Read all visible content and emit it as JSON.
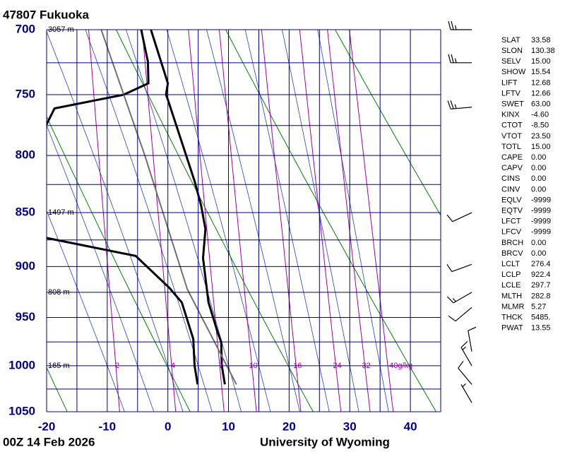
{
  "chart_data": {
    "type": "skewt",
    "title": "47807  Fukuoka",
    "date_label": "00Z 14 Feb 2026",
    "source": "University of Wyoming",
    "xlim": [
      -20,
      45
    ],
    "xticks": [
      -20,
      -10,
      0,
      10,
      20,
      30,
      40
    ],
    "xgrid": [
      -20,
      -15,
      -10,
      -5,
      0,
      5,
      10,
      15,
      20,
      25,
      30,
      35,
      40,
      45
    ],
    "ylim": [
      700,
      1050
    ],
    "ylog": true,
    "yticks": [
      700,
      750,
      800,
      850,
      900,
      950,
      1000,
      1050
    ],
    "ygrid": [
      700,
      725,
      750,
      775,
      800,
      825,
      850,
      875,
      900,
      925,
      950,
      975,
      1000,
      1025,
      1050
    ],
    "grid_color": "#000080",
    "dry_adiabats": [
      253,
      273,
      293,
      313,
      333
    ],
    "dry_color": "#008000",
    "moist_adiabats": [
      -10,
      -5,
      0,
      5,
      10,
      15,
      20,
      25,
      30,
      35
    ],
    "moist_color": "#2040c0",
    "mixing_ratio_level": 1000,
    "mixing_ratios": [
      2,
      4,
      7,
      10,
      16,
      24,
      32,
      {
        "value": 40,
        "label": "40g/kg"
      }
    ],
    "mixing_color": "#a000a0",
    "heights": [
      {
        "pressure": 700,
        "label": "3057 m"
      },
      {
        "pressure": 850,
        "label": "1497 m"
      },
      {
        "pressure": 925,
        "label": "808 m"
      },
      {
        "pressure": 1000,
        "label": "165 m"
      }
    ],
    "series": [
      {
        "color": "#000000",
        "pressure": [
          1020,
          1000,
          975,
          965,
          935,
          892,
          865,
          844,
          822,
          754,
          750,
          741,
          700
        ],
        "values": [
          9.4,
          8.9,
          8.8,
          8.2,
          6.7,
          5.8,
          6.2,
          5.5,
          4.4,
          0.0,
          -0.3,
          0.0,
          -2.8
        ]
      },
      {
        "color": "#000000",
        "pressure": [
          1020,
          1000,
          972,
          935,
          921,
          890,
          872,
          779,
          761,
          750,
          741,
          724,
          700
        ],
        "values": [
          4.9,
          4.4,
          4.2,
          2.3,
          0.3,
          -5.3,
          -21,
          -20.5,
          -18.7,
          -7.3,
          -3.2,
          -3.3,
          -4.4
        ]
      },
      {
        "color": "#707070",
        "pressure": [
          1020,
          922,
          800,
          700
        ],
        "values": [
          11.3,
          3.2,
          -3.8,
          -11.0
        ]
      }
    ],
    "winds": {
      "pressure": [
        700,
        725,
        760,
        850,
        898,
        925,
        940,
        985,
        1000,
        1020,
        1040
      ],
      "direction": [
        270,
        270,
        265,
        245,
        250,
        240,
        230,
        350,
        330,
        320,
        330
      ],
      "speed": [
        25,
        25,
        25,
        10,
        10,
        15,
        10,
        10,
        15,
        10,
        5
      ]
    },
    "indices": [
      {
        "name": "SLAT",
        "value": "33.58"
      },
      {
        "name": "SLON",
        "value": "130.38"
      },
      {
        "name": "SELV",
        "value": "15.00"
      },
      {
        "name": "SHOW",
        "value": "15.54"
      },
      {
        "name": "LIFT",
        "value": "12.68"
      },
      {
        "name": "LFTV",
        "value": "12.66"
      },
      {
        "name": "SWET",
        "value": "63.00"
      },
      {
        "name": "KINX",
        "value": "-4.60"
      },
      {
        "name": "CTOT",
        "value": "-8.50"
      },
      {
        "name": "VTOT",
        "value": "23.50"
      },
      {
        "name": "TOTL",
        "value": "15.00"
      },
      {
        "name": "CAPE",
        "value": "0.00"
      },
      {
        "name": "CAPV",
        "value": "0.00"
      },
      {
        "name": "CINS",
        "value": "0.00"
      },
      {
        "name": "CINV",
        "value": "0.00"
      },
      {
        "name": "EQLV",
        "value": "-9999"
      },
      {
        "name": "EQTV",
        "value": "-9999"
      },
      {
        "name": "LFCT",
        "value": "-9999"
      },
      {
        "name": "LFCV",
        "value": "-9999"
      },
      {
        "name": "BRCH",
        "value": "0.00"
      },
      {
        "name": "BRCV",
        "value": "0.00"
      },
      {
        "name": "LCLT",
        "value": "276.4"
      },
      {
        "name": "LCLP",
        "value": "922.4"
      },
      {
        "name": "LCLE",
        "value": "297.7"
      },
      {
        "name": "MLTH",
        "value": "282.8"
      },
      {
        "name": "MLMR",
        "value": "5.27"
      },
      {
        "name": "THCK",
        "value": "5485."
      },
      {
        "name": "PWAT",
        "value": "13.55"
      }
    ]
  }
}
